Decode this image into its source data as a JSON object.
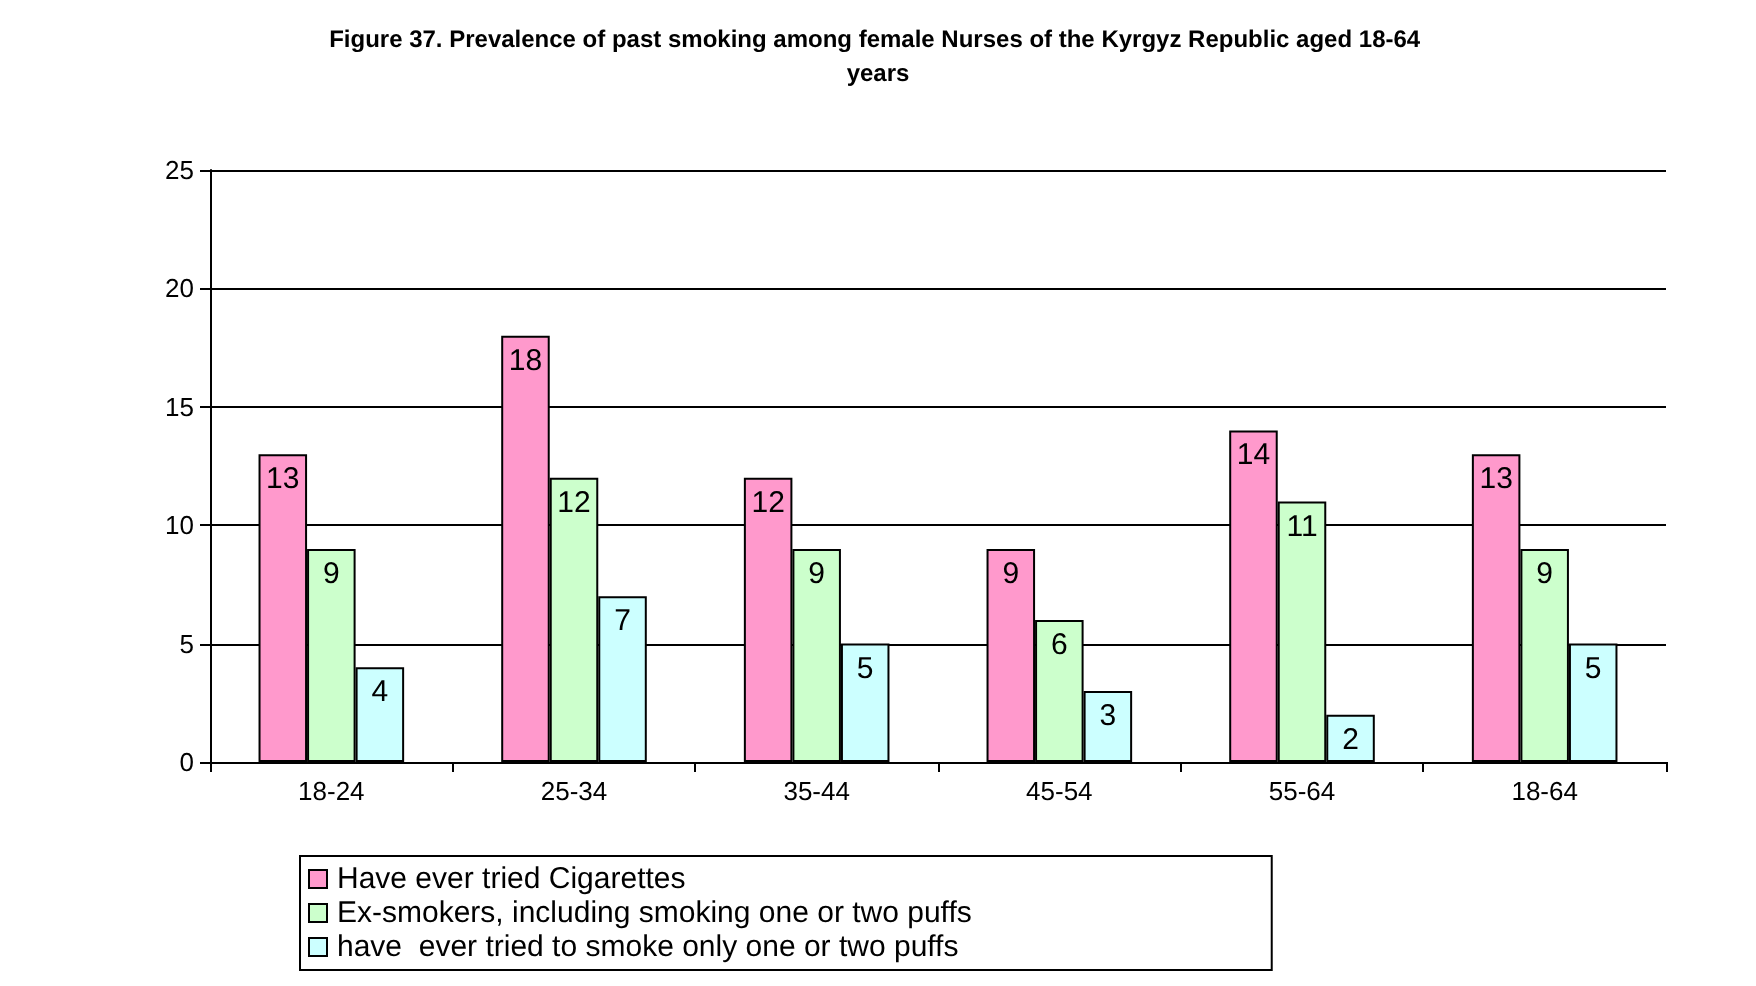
{
  "chart_data": {
    "type": "bar",
    "title": "Figure 37. Prevalence of past smoking among female Nurses of the Kyrgyz Republic aged 18-64 years",
    "categories": [
      "18-24",
      "25-34",
      "35-44",
      "45-54",
      "55-64",
      "18-64"
    ],
    "series": [
      {
        "name": "Have ever tried Cigarettes",
        "color": "#ff99cc",
        "values": [
          13,
          18,
          12,
          9,
          14,
          13
        ]
      },
      {
        "name": "Ex-smokers, including smoking one or two puffs",
        "color": "#ccffcc",
        "values": [
          9,
          12,
          9,
          6,
          11,
          9
        ]
      },
      {
        "name": "have  ever tried to smoke only one or two puffs",
        "color": "#ccffff",
        "values": [
          4,
          7,
          5,
          3,
          2,
          5
        ]
      }
    ],
    "ylim": [
      0,
      25
    ],
    "yticks": [
      0,
      5,
      10,
      15,
      20,
      25
    ],
    "grid": "y",
    "legend": "bottom",
    "data_labels": true
  }
}
